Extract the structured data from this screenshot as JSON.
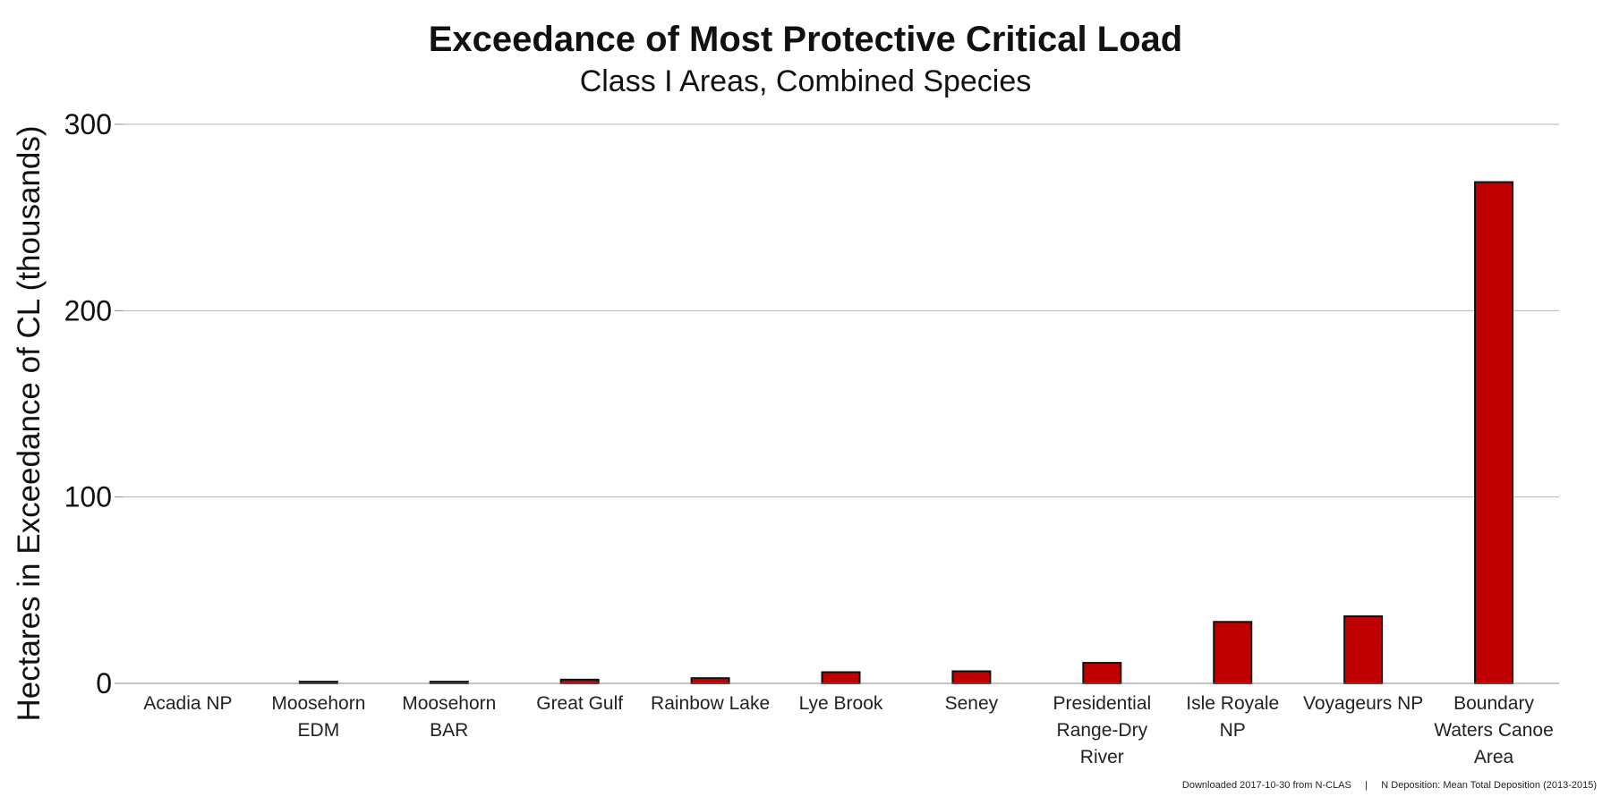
{
  "chart_data": {
    "type": "bar",
    "title": "Exceedance of Most Protective Critical Load",
    "subtitle": "Class I Areas, Combined Species",
    "ylabel": "Hectares in Exceedance of CL (thousands)",
    "xlabel": "",
    "ylim": [
      0,
      300
    ],
    "yticks": [
      "0",
      "100",
      "200",
      "300"
    ],
    "grid": true,
    "bar_color": "#c00000",
    "categories": [
      [
        "Acadia NP"
      ],
      [
        "Moosehorn",
        "EDM"
      ],
      [
        "Moosehorn",
        "BAR"
      ],
      [
        "Great Gulf"
      ],
      [
        "Rainbow Lake"
      ],
      [
        "Lye Brook"
      ],
      [
        "Seney"
      ],
      [
        "Presidential",
        "Range-Dry",
        "River"
      ],
      [
        "Isle Royale",
        "NP"
      ],
      [
        "Voyageurs NP"
      ],
      [
        "Boundary",
        "Waters Canoe",
        "Area"
      ]
    ],
    "values": [
      0,
      0.9,
      0.9,
      2,
      2.8,
      6,
      6.5,
      11,
      33,
      36,
      269
    ]
  },
  "footer": {
    "source": "Downloaded 2017-10-30 from N-CLAS",
    "separator": "|",
    "deposition": "N Deposition: Mean Total Deposition (2013-2015)"
  }
}
